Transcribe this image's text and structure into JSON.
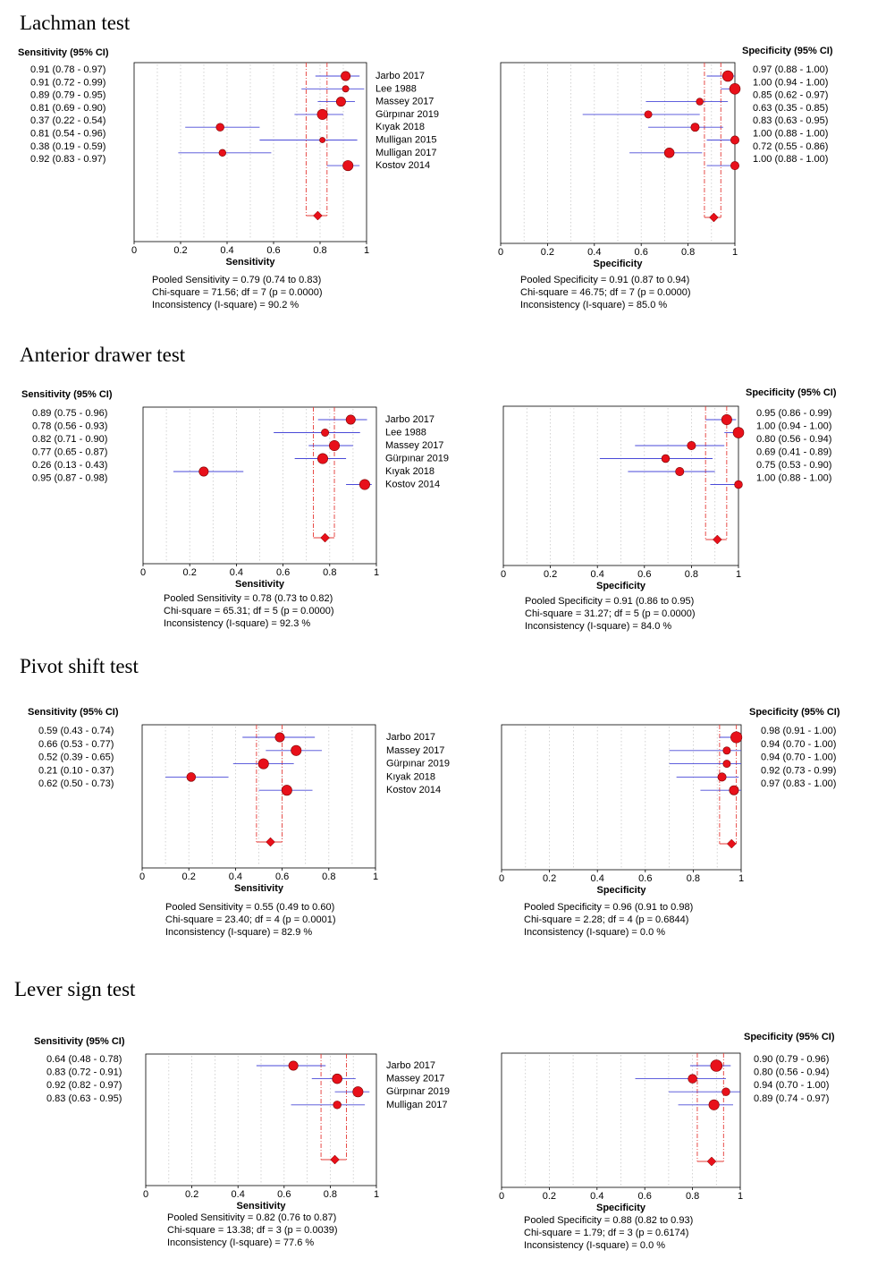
{
  "figure": {
    "axis_ticks": [
      "0",
      "0.2",
      "0.4",
      "0.6",
      "0.8",
      "1"
    ],
    "colors": {
      "marker": "#e8101a",
      "ci_line": "#4a4ad8",
      "pooled_line": "#e53935",
      "grid": "#c8c8c8",
      "frame": "#000000"
    }
  },
  "chart_data": [
    {
      "type": "forest",
      "title": "Lachman test",
      "studies": [
        "Jarbo 2017",
        "Lee 1988",
        "Massey 2017",
        "Gürpınar 2019",
        "Kıyak 2018",
        "Mulligan 2015",
        "Mulligan 2017",
        "Kostov 2014"
      ],
      "sensitivity": {
        "header": "Sensitivity (95% CI)",
        "xlabel": "Sensitivity",
        "xlim": [
          0,
          1
        ],
        "values": [
          0.91,
          0.91,
          0.89,
          0.81,
          0.37,
          0.81,
          0.38,
          0.92
        ],
        "ci_low": [
          0.78,
          0.72,
          0.79,
          0.69,
          0.22,
          0.54,
          0.19,
          0.83
        ],
        "ci_high": [
          0.97,
          0.99,
          0.95,
          0.9,
          0.54,
          0.96,
          0.59,
          0.97
        ],
        "labels": [
          "0.91   (0.78 - 0.97)",
          "0.91   (0.72 - 0.99)",
          "0.89   (0.79 - 0.95)",
          "0.81   (0.69 - 0.90)",
          "0.37   (0.22 - 0.54)",
          "0.81   (0.54 - 0.96)",
          "0.38   (0.19 - 0.59)",
          "0.92   (0.83 - 0.97)"
        ],
        "weights": [
          1.0,
          0.7,
          1.0,
          1.1,
          0.85,
          0.6,
          0.75,
          1.1
        ],
        "pooled": 0.79,
        "pooled_low": 0.74,
        "pooled_high": 0.83,
        "stats": [
          "Pooled Sensitivity = 0.79 (0.74 to 0.83)",
          "Chi-square = 71.56; df =  7 (p = 0.0000)",
          "Inconsistency (I-square) = 90.2 %"
        ]
      },
      "specificity": {
        "header": "Specificity (95% CI)",
        "xlabel": "Specificity",
        "xlim": [
          0,
          1
        ],
        "values": [
          0.97,
          1.0,
          0.85,
          0.63,
          0.83,
          1.0,
          0.72,
          1.0
        ],
        "ci_low": [
          0.88,
          0.94,
          0.62,
          0.35,
          0.63,
          0.88,
          0.55,
          0.88
        ],
        "ci_high": [
          1.0,
          1.0,
          0.97,
          0.85,
          0.95,
          1.0,
          0.86,
          1.0
        ],
        "labels": [
          "0.97   (0.88 - 1.00)",
          "1.00   (0.94 - 1.00)",
          "0.85   (0.62 - 0.97)",
          "0.63   (0.35 - 0.85)",
          "0.83   (0.63 - 0.95)",
          "1.00   (0.88 - 1.00)",
          "0.72   (0.55 - 0.86)",
          "1.00   (0.88 - 1.00)"
        ],
        "weights": [
          1.15,
          1.15,
          0.75,
          0.8,
          0.9,
          0.9,
          1.05,
          0.9
        ],
        "pooled": 0.91,
        "pooled_low": 0.87,
        "pooled_high": 0.94,
        "stats": [
          "Pooled Specificity = 0.91 (0.87 to 0.94)",
          "Chi-square = 46.75; df =  7 (p = 0.0000)",
          "Inconsistency (I-square) = 85.0 %"
        ]
      }
    },
    {
      "type": "forest",
      "title": "Anterior drawer test",
      "studies": [
        "Jarbo 2017",
        "Lee 1988",
        "Massey 2017",
        "Gürpınar 2019",
        "Kıyak 2018",
        "Kostov 2014"
      ],
      "sensitivity": {
        "header": "Sensitivity (95% CI)",
        "xlabel": "Sensitivity",
        "xlim": [
          0,
          1
        ],
        "values": [
          0.89,
          0.78,
          0.82,
          0.77,
          0.26,
          0.95
        ],
        "ci_low": [
          0.75,
          0.56,
          0.71,
          0.65,
          0.13,
          0.87
        ],
        "ci_high": [
          0.96,
          0.93,
          0.9,
          0.87,
          0.43,
          0.98
        ],
        "labels": [
          "0.89   (0.75 - 0.96)",
          "0.78   (0.56 - 0.93)",
          "0.82   (0.71 - 0.90)",
          "0.77   (0.65 - 0.87)",
          "0.26   (0.13 - 0.43)",
          "0.95   (0.87 - 0.98)"
        ],
        "weights": [
          1.0,
          0.8,
          1.1,
          1.1,
          1.0,
          1.1
        ],
        "pooled": 0.78,
        "pooled_low": 0.73,
        "pooled_high": 0.82,
        "stats": [
          "Pooled Sensitivity = 0.78 (0.73 to 0.82)",
          "Chi-square = 65.31; df =  5 (p = 0.0000)",
          "Inconsistency (I-square) = 92.3 %"
        ]
      },
      "specificity": {
        "header": "Specificity (95% CI)",
        "xlabel": "Specificity",
        "xlim": [
          0,
          1
        ],
        "values": [
          0.95,
          1.0,
          0.8,
          0.69,
          0.75,
          1.0
        ],
        "ci_low": [
          0.86,
          0.94,
          0.56,
          0.41,
          0.53,
          0.88
        ],
        "ci_high": [
          0.99,
          1.0,
          0.94,
          0.89,
          0.9,
          1.0
        ],
        "labels": [
          "0.95   (0.86 - 0.99)",
          "1.00   (0.94 - 1.00)",
          "0.80   (0.56 - 0.94)",
          "0.69   (0.41 - 0.89)",
          "0.75   (0.53 - 0.90)",
          "1.00   (0.88 - 1.00)"
        ],
        "weights": [
          1.1,
          1.15,
          0.9,
          0.85,
          0.9,
          0.85
        ],
        "pooled": 0.91,
        "pooled_low": 0.86,
        "pooled_high": 0.95,
        "stats": [
          "Pooled Specificity = 0.91 (0.86 to 0.95)",
          "Chi-square = 31.27; df =  5 (p = 0.0000)",
          "Inconsistency (I-square) = 84.0 %"
        ]
      }
    },
    {
      "type": "forest",
      "title": "Pivot shift test",
      "studies": [
        "Jarbo 2017",
        "Massey 2017",
        "Gürpınar 2019",
        "Kıyak 2018",
        "Kostov 2014"
      ],
      "sensitivity": {
        "header": "Sensitivity (95% CI)",
        "xlabel": "Sensitivity",
        "xlim": [
          0,
          1
        ],
        "values": [
          0.59,
          0.66,
          0.52,
          0.21,
          0.62
        ],
        "ci_low": [
          0.43,
          0.53,
          0.39,
          0.1,
          0.5
        ],
        "ci_high": [
          0.74,
          0.77,
          0.65,
          0.37,
          0.73
        ],
        "labels": [
          "0.59   (0.43 - 0.74)",
          "0.66   (0.53 - 0.77)",
          "0.52   (0.39 - 0.65)",
          "0.21   (0.10 - 0.37)",
          "0.62   (0.50 - 0.73)"
        ],
        "weights": [
          1.0,
          1.1,
          1.1,
          0.95,
          1.1
        ],
        "pooled": 0.55,
        "pooled_low": 0.49,
        "pooled_high": 0.6,
        "stats": [
          "Pooled Sensitivity = 0.55 (0.49 to 0.60)",
          "Chi-square = 23.40; df =  4 (p = 0.0001)",
          "Inconsistency (I-square) = 82.9 %"
        ]
      },
      "specificity": {
        "header": "Specificity (95% CI)",
        "xlabel": "Specificity",
        "xlim": [
          0,
          1
        ],
        "values": [
          0.98,
          0.94,
          0.94,
          0.92,
          0.97
        ],
        "ci_low": [
          0.91,
          0.7,
          0.7,
          0.73,
          0.83
        ],
        "ci_high": [
          1.0,
          1.0,
          1.0,
          0.99,
          1.0
        ],
        "labels": [
          "0.98   (0.91 - 1.00)",
          "0.94   (0.70 - 1.00)",
          "0.94   (0.70 - 1.00)",
          "0.92   (0.73 - 0.99)",
          "0.97   (0.83 - 1.00)"
        ],
        "weights": [
          1.2,
          0.8,
          0.8,
          0.9,
          1.0
        ],
        "pooled": 0.96,
        "pooled_low": 0.91,
        "pooled_high": 0.98,
        "stats": [
          "Pooled Specificity = 0.96 (0.91 to 0.98)",
          "Chi-square = 2.28; df =  4 (p = 0.6844)",
          "Inconsistency (I-square) = 0.0 %"
        ]
      }
    },
    {
      "type": "forest",
      "title": "Lever sign test",
      "studies": [
        "Jarbo 2017",
        "Massey 2017",
        "Gürpınar 2019",
        "Mulligan 2017"
      ],
      "sensitivity": {
        "header": "Sensitivity (95% CI)",
        "xlabel": "Sensitivity",
        "xlim": [
          0,
          1
        ],
        "values": [
          0.64,
          0.83,
          0.92,
          0.83
        ],
        "ci_low": [
          0.48,
          0.72,
          0.82,
          0.63
        ],
        "ci_high": [
          0.78,
          0.91,
          0.97,
          0.95
        ],
        "labels": [
          "0.64   (0.48 - 0.78)",
          "0.83   (0.72 - 0.91)",
          "0.92   (0.82 - 0.97)",
          "0.83   (0.63 - 0.95)"
        ],
        "weights": [
          1.0,
          1.05,
          1.1,
          0.85
        ],
        "pooled": 0.82,
        "pooled_low": 0.76,
        "pooled_high": 0.87,
        "stats": [
          "Pooled Sensitivity = 0.82 (0.76 to 0.87)",
          "Chi-square = 13.38; df =  3 (p = 0.0039)",
          "Inconsistency (I-square) = 77.6 %"
        ]
      },
      "specificity": {
        "header": "Specificity (95% CI)",
        "xlabel": "Specificity",
        "xlim": [
          0,
          1
        ],
        "values": [
          0.9,
          0.8,
          0.94,
          0.89
        ],
        "ci_low": [
          0.79,
          0.56,
          0.7,
          0.74
        ],
        "ci_high": [
          0.96,
          0.94,
          1.0,
          0.97
        ],
        "labels": [
          "0.90   (0.79 - 0.96)",
          "0.80   (0.56 - 0.94)",
          "0.94   (0.70 - 1.00)",
          "0.89   (0.74 - 0.97)"
        ],
        "weights": [
          1.25,
          0.95,
          0.85,
          1.1
        ],
        "pooled": 0.88,
        "pooled_low": 0.82,
        "pooled_high": 0.93,
        "stats": [
          "Pooled Specificity = 0.88 (0.82 to 0.93)",
          "Chi-square = 1.79; df =  3 (p = 0.6174)",
          "Inconsistency (I-square) = 0.0 %"
        ]
      }
    }
  ]
}
